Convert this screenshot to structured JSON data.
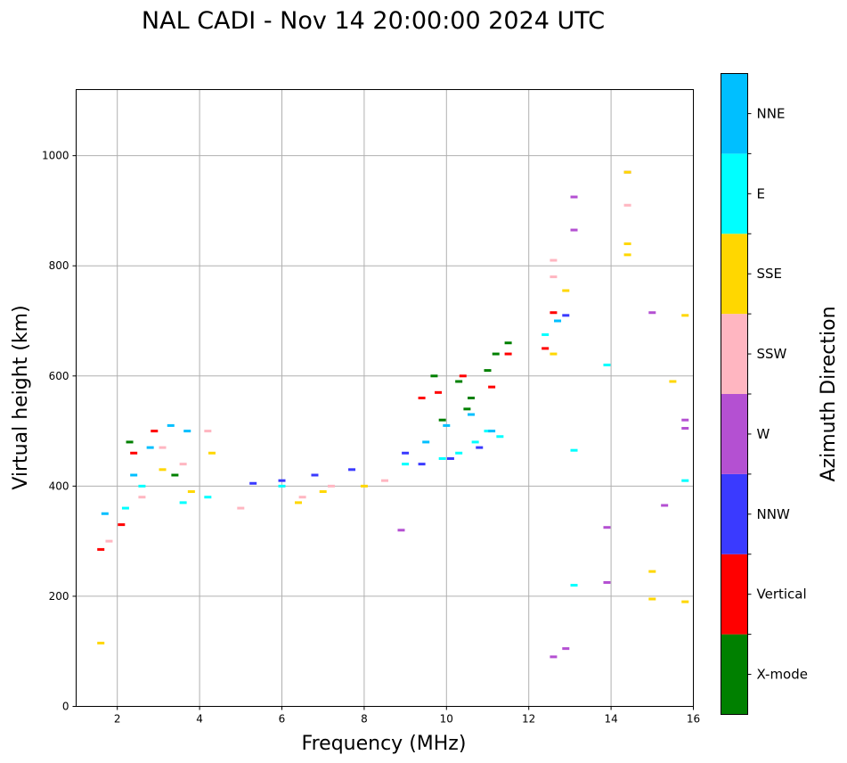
{
  "chart_data": {
    "type": "scatter",
    "title": "NAL CADI - Nov 14 20:00:00 2024 UTC",
    "xlabel": "Frequency (MHz)",
    "ylabel": "Virtual height (km)",
    "xlim": [
      1.0,
      16.0
    ],
    "ylim": [
      0,
      1120
    ],
    "xticks": [
      2,
      4,
      6,
      8,
      10,
      12,
      14,
      16
    ],
    "yticks": [
      0,
      200,
      400,
      600,
      800,
      1000
    ],
    "grid": true,
    "colorbar": {
      "label": "Azimuth Direction",
      "categories": [
        {
          "name": "X-mode",
          "color": "#008000"
        },
        {
          "name": "Vertical",
          "color": "#ff0000"
        },
        {
          "name": "NNW",
          "color": "#3a3aff"
        },
        {
          "name": "W",
          "color": "#b450d2"
        },
        {
          "name": "SSW",
          "color": "#ffb6c1"
        },
        {
          "name": "SSE",
          "color": "#ffd700"
        },
        {
          "name": "E",
          "color": "#00ffff"
        },
        {
          "name": "NNE",
          "color": "#00bfff"
        }
      ]
    },
    "series": [
      {
        "name": "X-mode",
        "x": [
          2.3,
          3.4,
          9.7,
          10.3,
          10.6,
          11.0,
          11.2,
          11.5,
          10.5,
          9.9
        ],
        "y": [
          480,
          420,
          600,
          590,
          560,
          610,
          640,
          660,
          540,
          520
        ]
      },
      {
        "name": "Vertical",
        "x": [
          1.6,
          2.1,
          2.4,
          2.9,
          9.4,
          9.8,
          10.4,
          11.1,
          11.5,
          12.4,
          12.6
        ],
        "y": [
          285,
          330,
          460,
          500,
          560,
          570,
          600,
          580,
          640,
          650,
          715
        ]
      },
      {
        "name": "NNW",
        "x": [
          5.3,
          6.0,
          6.8,
          7.7,
          9.0,
          9.4,
          10.1,
          10.8,
          12.9
        ],
        "y": [
          405,
          410,
          420,
          430,
          460,
          440,
          450,
          470,
          710
        ]
      },
      {
        "name": "W",
        "x": [
          8.9,
          12.6,
          12.9,
          13.1,
          13.1,
          13.9,
          13.9,
          14.4,
          15.0,
          15.3,
          15.8,
          15.8
        ],
        "y": [
          320,
          90,
          105,
          865,
          925,
          325,
          225,
          970,
          715,
          365,
          520,
          505
        ]
      },
      {
        "name": "SSW",
        "x": [
          1.8,
          2.6,
          3.1,
          3.6,
          4.2,
          5.0,
          6.5,
          7.2,
          8.5,
          12.6,
          12.6,
          14.4
        ],
        "y": [
          300,
          380,
          470,
          440,
          500,
          360,
          380,
          400,
          410,
          810,
          780,
          910
        ]
      },
      {
        "name": "SSE",
        "x": [
          1.6,
          3.1,
          3.8,
          4.3,
          6.4,
          7.0,
          8.0,
          12.6,
          12.9,
          14.4,
          14.4,
          14.4,
          15.0,
          15.0,
          15.5,
          15.8,
          15.8
        ],
        "y": [
          115,
          430,
          390,
          460,
          370,
          390,
          400,
          640,
          755,
          970,
          840,
          820,
          245,
          195,
          590,
          710,
          190
        ]
      },
      {
        "name": "E",
        "x": [
          2.2,
          2.6,
          3.6,
          4.2,
          6.0,
          9.0,
          9.9,
          10.3,
          10.7,
          11.0,
          11.3,
          12.4,
          13.1,
          13.1,
          13.9,
          15.8
        ],
        "y": [
          360,
          400,
          370,
          380,
          400,
          440,
          450,
          460,
          480,
          500,
          490,
          675,
          465,
          220,
          620,
          410
        ]
      },
      {
        "name": "NNE",
        "x": [
          1.7,
          2.4,
          2.8,
          3.3,
          3.7,
          9.5,
          10.0,
          10.6,
          11.1,
          12.7
        ],
        "y": [
          350,
          420,
          470,
          510,
          500,
          480,
          510,
          530,
          500,
          700
        ]
      }
    ]
  }
}
